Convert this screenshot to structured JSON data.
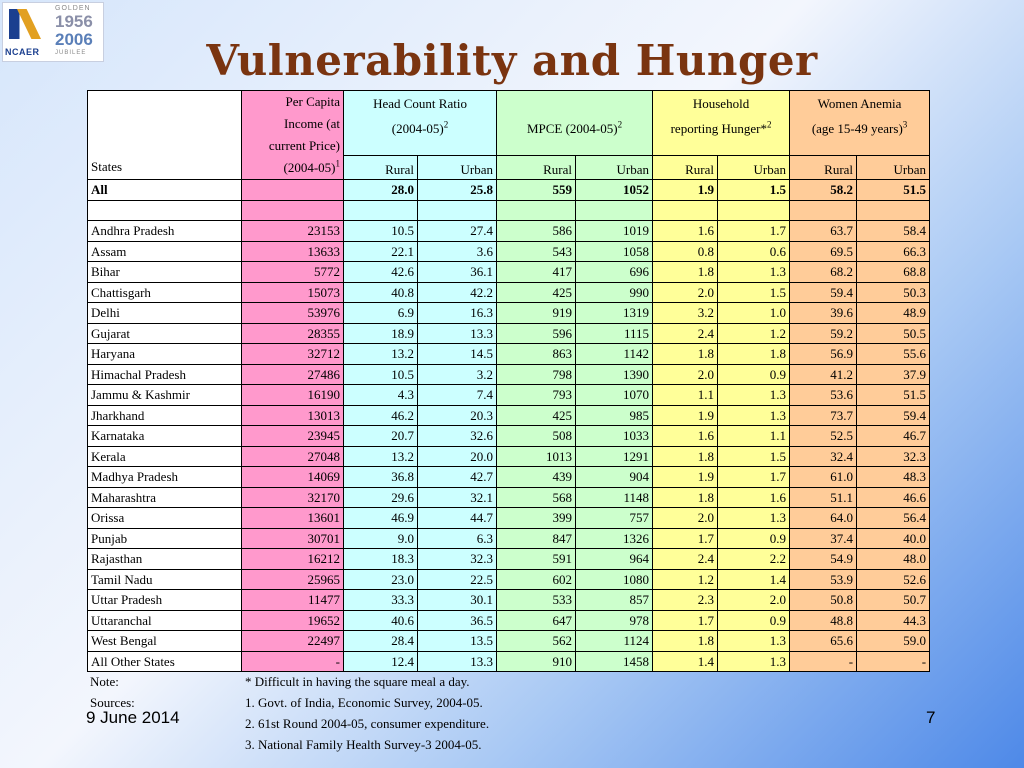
{
  "slide": {
    "title": "Vulnerability and Hunger",
    "date": "9 June 2014",
    "page_number": "7"
  },
  "logo": {
    "brand": "NCAER",
    "golden": "GOLDEN",
    "year_start": "1956",
    "year_end": "2006",
    "jubilee": "JUBILEE"
  },
  "table": {
    "header": {
      "states_label": "States",
      "per_capita": [
        "Per Capita",
        "Income (at",
        "current Price)",
        "(2004-05)"
      ],
      "per_capita_sup": "1",
      "hcr_line1": "Head Count Ratio",
      "hcr_line2": "(2004-05)",
      "hcr_sup": "2",
      "mpce": "MPCE (2004-05)",
      "mpce_sup": "2",
      "hh_line1": "Household",
      "hh_line2": "reporting Hunger*",
      "hh_sup": "2",
      "wa_line1": "Women Anemia",
      "wa_line2": "(age 15-49 years)",
      "wa_sup": "3",
      "rural": "Rural",
      "urban": "Urban"
    },
    "all_row": {
      "state": "All",
      "pci": "",
      "hcr_rural": "28.0",
      "hcr_urban": "25.8",
      "mpce_rural": "559",
      "mpce_urban": "1052",
      "hh_rural": "1.9",
      "hh_urban": "1.5",
      "wa_rural": "58.2",
      "wa_urban": "51.5"
    },
    "rows": [
      [
        "Andhra Pradesh",
        "23153",
        "10.5",
        "27.4",
        "586",
        "1019",
        "1.6",
        "1.7",
        "63.7",
        "58.4"
      ],
      [
        "Assam",
        "13633",
        "22.1",
        "3.6",
        "543",
        "1058",
        "0.8",
        "0.6",
        "69.5",
        "66.3"
      ],
      [
        "Bihar",
        "5772",
        "42.6",
        "36.1",
        "417",
        "696",
        "1.8",
        "1.3",
        "68.2",
        "68.8"
      ],
      [
        "Chattisgarh",
        "15073",
        "40.8",
        "42.2",
        "425",
        "990",
        "2.0",
        "1.5",
        "59.4",
        "50.3"
      ],
      [
        "Delhi",
        "53976",
        "6.9",
        "16.3",
        "919",
        "1319",
        "3.2",
        "1.0",
        "39.6",
        "48.9"
      ],
      [
        "Gujarat",
        "28355",
        "18.9",
        "13.3",
        "596",
        "1115",
        "2.4",
        "1.2",
        "59.2",
        "50.5"
      ],
      [
        "Haryana",
        "32712",
        "13.2",
        "14.5",
        "863",
        "1142",
        "1.8",
        "1.8",
        "56.9",
        "55.6"
      ],
      [
        "Himachal Pradesh",
        "27486",
        "10.5",
        "3.2",
        "798",
        "1390",
        "2.0",
        "0.9",
        "41.2",
        "37.9"
      ],
      [
        "Jammu & Kashmir",
        "16190",
        "4.3",
        "7.4",
        "793",
        "1070",
        "1.1",
        "1.3",
        "53.6",
        "51.5"
      ],
      [
        "Jharkhand",
        "13013",
        "46.2",
        "20.3",
        "425",
        "985",
        "1.9",
        "1.3",
        "73.7",
        "59.4"
      ],
      [
        "Karnataka",
        "23945",
        "20.7",
        "32.6",
        "508",
        "1033",
        "1.6",
        "1.1",
        "52.5",
        "46.7"
      ],
      [
        "Kerala",
        "27048",
        "13.2",
        "20.0",
        "1013",
        "1291",
        "1.8",
        "1.5",
        "32.4",
        "32.3"
      ],
      [
        "Madhya Pradesh",
        "14069",
        "36.8",
        "42.7",
        "439",
        "904",
        "1.9",
        "1.7",
        "61.0",
        "48.3"
      ],
      [
        "Maharashtra",
        "32170",
        "29.6",
        "32.1",
        "568",
        "1148",
        "1.8",
        "1.6",
        "51.1",
        "46.6"
      ],
      [
        "Orissa",
        "13601",
        "46.9",
        "44.7",
        "399",
        "757",
        "2.0",
        "1.3",
        "64.0",
        "56.4"
      ],
      [
        "Punjab",
        "30701",
        "9.0",
        "6.3",
        "847",
        "1326",
        "1.7",
        "0.9",
        "37.4",
        "40.0"
      ],
      [
        "Rajasthan",
        "16212",
        "18.3",
        "32.3",
        "591",
        "964",
        "2.4",
        "2.2",
        "54.9",
        "48.0"
      ],
      [
        "Tamil Nadu",
        "25965",
        "23.0",
        "22.5",
        "602",
        "1080",
        "1.2",
        "1.4",
        "53.9",
        "52.6"
      ],
      [
        "Uttar Pradesh",
        "11477",
        "33.3",
        "30.1",
        "533",
        "857",
        "2.3",
        "2.0",
        "50.8",
        "50.7"
      ],
      [
        "Uttaranchal",
        "19652",
        "40.6",
        "36.5",
        "647",
        "978",
        "1.7",
        "0.9",
        "48.8",
        "44.3"
      ],
      [
        "West Bengal",
        "22497",
        "28.4",
        "13.5",
        "562",
        "1124",
        "1.8",
        "1.3",
        "65.6",
        "59.0"
      ],
      [
        "All Other States",
        "-",
        "12.4",
        "13.3",
        "910",
        "1458",
        "1.4",
        "1.3",
        "-",
        "-"
      ]
    ]
  },
  "notes": {
    "note_label": "Note:",
    "note_text": "*  Difficult in having the square meal a day.",
    "sources_label": "Sources:",
    "sources": [
      "1.  Govt. of India, Economic Survey, 2004-05.",
      "2.  61st Round 2004-05, consumer expenditure.",
      "3.  National Family Health Survey-3 2004-05."
    ]
  },
  "colors": {
    "title": "#7a3410",
    "per_capita_col": "#ff99cc",
    "hcr_col": "#ccffff",
    "mpce_col": "#ccffcc",
    "hunger_col": "#ffff99",
    "anemia_col": "#ffcc99"
  }
}
